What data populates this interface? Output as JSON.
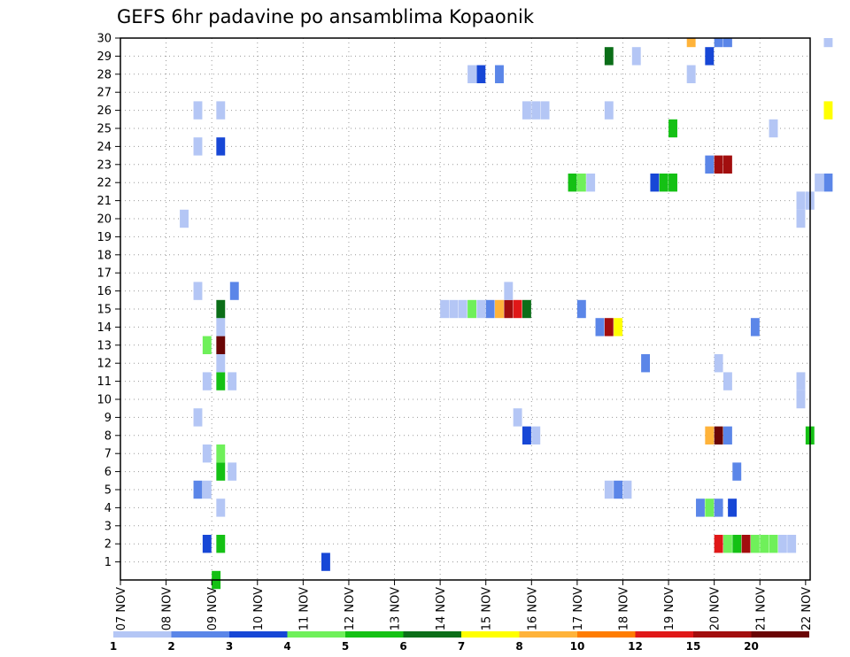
{
  "chart_data": {
    "type": "heatmap",
    "title": "GEFS 6hr padavine po ansamblima Kopaonik",
    "x_tick_labels": [
      "07 NOV",
      "08 NOV",
      "09 NOV",
      "10 NOV",
      "11 NOV",
      "12 NOV",
      "13 NOV",
      "14 NOV",
      "15 NOV",
      "16 NOV",
      "17 NOV",
      "18 NOV",
      "19 NOV",
      "20 NOV",
      "21 NOV",
      "22 NOV"
    ],
    "y_tick_labels": [
      "1",
      "2",
      "3",
      "4",
      "5",
      "6",
      "7",
      "8",
      "9",
      "10",
      "11",
      "12",
      "13",
      "14",
      "15",
      "16",
      "17",
      "18",
      "19",
      "20",
      "21",
      "22",
      "23",
      "24",
      "25",
      "26",
      "27",
      "28",
      "29",
      "30"
    ],
    "grid": true,
    "x_range_days": [
      0,
      15
    ],
    "y_range": [
      0,
      30
    ],
    "legend": {
      "placement": "bottom",
      "labels": [
        "1",
        "2",
        "3",
        "4",
        "5",
        "6",
        "7",
        "8",
        "10",
        "12",
        "15",
        "20"
      ],
      "colors": [
        "#b4c6f5",
        "#5b86e8",
        "#1747d6",
        "#6ff05a",
        "#14c114",
        "#0b6e18",
        "#ffff00",
        "#ffb33a",
        "#ff7c00",
        "#e01818",
        "#a20e0e",
        "#6a0505"
      ]
    },
    "cells": [
      {
        "m": 0,
        "d": 2.0,
        "c": 5
      },
      {
        "m": 1,
        "d": 4.4,
        "c": 3
      },
      {
        "m": 2,
        "d": 1.8,
        "c": 3
      },
      {
        "m": 2,
        "d": 2.1,
        "c": 5
      },
      {
        "m": 2,
        "d": 13.0,
        "c": 10
      },
      {
        "m": 2,
        "d": 13.2,
        "c": 4
      },
      {
        "m": 2,
        "d": 13.4,
        "c": 5
      },
      {
        "m": 2,
        "d": 13.6,
        "c": 11
      },
      {
        "m": 2,
        "d": 13.8,
        "c": 4
      },
      {
        "m": 2,
        "d": 14.0,
        "c": 4
      },
      {
        "m": 2,
        "d": 14.2,
        "c": 4
      },
      {
        "m": 2,
        "d": 14.4,
        "c": 1
      },
      {
        "m": 2,
        "d": 14.6,
        "c": 1
      },
      {
        "m": 4,
        "d": 2.1,
        "c": 1
      },
      {
        "m": 4,
        "d": 12.6,
        "c": 2
      },
      {
        "m": 4,
        "d": 12.8,
        "c": 4
      },
      {
        "m": 4,
        "d": 13.0,
        "c": 2
      },
      {
        "m": 4,
        "d": 13.3,
        "c": 3
      },
      {
        "m": 5,
        "d": 1.6,
        "c": 2
      },
      {
        "m": 5,
        "d": 1.8,
        "c": 1
      },
      {
        "m": 5,
        "d": 10.6,
        "c": 1
      },
      {
        "m": 5,
        "d": 10.8,
        "c": 2
      },
      {
        "m": 5,
        "d": 11.0,
        "c": 1
      },
      {
        "m": 6,
        "d": 2.1,
        "c": 5
      },
      {
        "m": 6,
        "d": 2.35,
        "c": 1
      },
      {
        "m": 6,
        "d": 13.4,
        "c": 2
      },
      {
        "m": 7,
        "d": 1.8,
        "c": 1
      },
      {
        "m": 7,
        "d": 2.1,
        "c": 4
      },
      {
        "m": 8,
        "d": 8.8,
        "c": 3
      },
      {
        "m": 8,
        "d": 9.0,
        "c": 1
      },
      {
        "m": 8,
        "d": 12.8,
        "c": 8
      },
      {
        "m": 8,
        "d": 13.0,
        "c": 12
      },
      {
        "m": 8,
        "d": 13.2,
        "c": 2
      },
      {
        "m": 8,
        "d": 15.0,
        "c": 5
      },
      {
        "m": 9,
        "d": 1.6,
        "c": 1
      },
      {
        "m": 9,
        "d": 8.6,
        "c": 1
      },
      {
        "m": 10,
        "d": 14.8,
        "c": 1
      },
      {
        "m": 11,
        "d": 1.8,
        "c": 1
      },
      {
        "m": 11,
        "d": 2.1,
        "c": 5
      },
      {
        "m": 11,
        "d": 2.35,
        "c": 1
      },
      {
        "m": 11,
        "d": 13.2,
        "c": 1
      },
      {
        "m": 11,
        "d": 14.8,
        "c": 1
      },
      {
        "m": 12,
        "d": 2.1,
        "c": 1
      },
      {
        "m": 12,
        "d": 11.4,
        "c": 2
      },
      {
        "m": 12,
        "d": 13.0,
        "c": 1
      },
      {
        "m": 13,
        "d": 1.8,
        "c": 4
      },
      {
        "m": 13,
        "d": 2.1,
        "c": 12
      },
      {
        "m": 14,
        "d": 2.1,
        "c": 1
      },
      {
        "m": 14,
        "d": 10.4,
        "c": 2
      },
      {
        "m": 14,
        "d": 10.6,
        "c": 11
      },
      {
        "m": 14,
        "d": 10.8,
        "c": 7
      },
      {
        "m": 14,
        "d": 13.8,
        "c": 2
      },
      {
        "m": 15,
        "d": 2.1,
        "c": 6
      },
      {
        "m": 15,
        "d": 7.0,
        "c": 1
      },
      {
        "m": 15,
        "d": 7.2,
        "c": 1
      },
      {
        "m": 15,
        "d": 7.4,
        "c": 1
      },
      {
        "m": 15,
        "d": 7.6,
        "c": 4
      },
      {
        "m": 15,
        "d": 7.8,
        "c": 1
      },
      {
        "m": 15,
        "d": 8.0,
        "c": 2
      },
      {
        "m": 15,
        "d": 8.2,
        "c": 8
      },
      {
        "m": 15,
        "d": 8.4,
        "c": 11
      },
      {
        "m": 15,
        "d": 8.6,
        "c": 10
      },
      {
        "m": 15,
        "d": 8.8,
        "c": 6
      },
      {
        "m": 15,
        "d": 10.0,
        "c": 2
      },
      {
        "m": 16,
        "d": 1.6,
        "c": 1
      },
      {
        "m": 16,
        "d": 2.4,
        "c": 2
      },
      {
        "m": 16,
        "d": 8.4,
        "c": 1
      },
      {
        "m": 20,
        "d": 1.3,
        "c": 1
      },
      {
        "m": 20,
        "d": 14.8,
        "c": 1
      },
      {
        "m": 21,
        "d": 14.8,
        "c": 1
      },
      {
        "m": 21,
        "d": 15.0,
        "c": 1
      },
      {
        "m": 22,
        "d": 9.8,
        "c": 5
      },
      {
        "m": 22,
        "d": 10.0,
        "c": 4
      },
      {
        "m": 22,
        "d": 10.2,
        "c": 1
      },
      {
        "m": 22,
        "d": 11.6,
        "c": 3
      },
      {
        "m": 22,
        "d": 11.8,
        "c": 5
      },
      {
        "m": 22,
        "d": 12.0,
        "c": 5
      },
      {
        "m": 22,
        "d": 15.2,
        "c": 1
      },
      {
        "m": 22,
        "d": 15.4,
        "c": 2
      },
      {
        "m": 23,
        "d": 12.8,
        "c": 2
      },
      {
        "m": 23,
        "d": 13.0,
        "c": 11
      },
      {
        "m": 23,
        "d": 13.2,
        "c": 11
      },
      {
        "m": 24,
        "d": 1.6,
        "c": 1
      },
      {
        "m": 24,
        "d": 2.1,
        "c": 3
      },
      {
        "m": 25,
        "d": 12.0,
        "c": 5
      },
      {
        "m": 25,
        "d": 14.2,
        "c": 1
      },
      {
        "m": 26,
        "d": 1.6,
        "c": 1
      },
      {
        "m": 26,
        "d": 2.1,
        "c": 1
      },
      {
        "m": 26,
        "d": 8.8,
        "c": 1
      },
      {
        "m": 26,
        "d": 9.0,
        "c": 1
      },
      {
        "m": 26,
        "d": 9.2,
        "c": 1
      },
      {
        "m": 26,
        "d": 10.6,
        "c": 1
      },
      {
        "m": 26,
        "d": 15.4,
        "c": 7
      },
      {
        "m": 28,
        "d": 7.6,
        "c": 1
      },
      {
        "m": 28,
        "d": 7.8,
        "c": 3
      },
      {
        "m": 28,
        "d": 8.2,
        "c": 2
      },
      {
        "m": 28,
        "d": 12.4,
        "c": 1
      },
      {
        "m": 29,
        "d": 10.6,
        "c": 6
      },
      {
        "m": 29,
        "d": 11.2,
        "c": 1
      },
      {
        "m": 29,
        "d": 12.8,
        "c": 3
      },
      {
        "m": 30,
        "d": 12.4,
        "c": 8
      },
      {
        "m": 30,
        "d": 13.0,
        "c": 2
      },
      {
        "m": 30,
        "d": 13.2,
        "c": 2
      },
      {
        "m": 30,
        "d": 15.4,
        "c": 1
      }
    ]
  }
}
